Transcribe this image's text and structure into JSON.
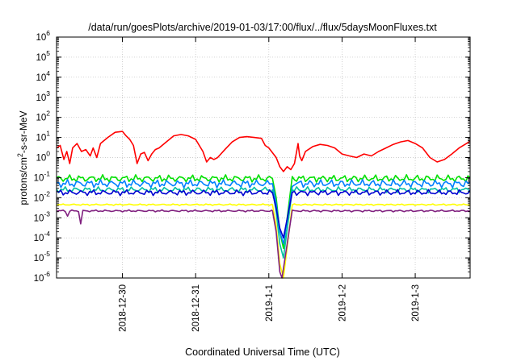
{
  "chart_data": {
    "type": "line",
    "title": "/data/run/goesPlots/archive/2019-01-03/17:00/flux/../flux/5daysMoonFluxes.txt",
    "xlabel": "Coordinated Universal Time (UTC)",
    "ylabel": "protons/cm²-s-sr-MeV",
    "ylabel_parts": {
      "main": "protons/cm",
      "sup": "2",
      "rest": "-s-sr-MeV"
    },
    "yscale": "log",
    "ylim_exp": [
      -6,
      6
    ],
    "ytick_labels": [
      {
        "base": "10",
        "exp": "-6"
      },
      {
        "base": "10",
        "exp": "-5"
      },
      {
        "base": "10",
        "exp": "-4"
      },
      {
        "base": "10",
        "exp": "-3"
      },
      {
        "base": "10",
        "exp": "-2"
      },
      {
        "base": "10",
        "exp": "-1"
      },
      {
        "base": "10",
        "exp": "0"
      },
      {
        "base": "10",
        "exp": "1"
      },
      {
        "base": "10",
        "exp": "2"
      },
      {
        "base": "10",
        "exp": "3"
      },
      {
        "base": "10",
        "exp": "4"
      },
      {
        "base": "10",
        "exp": "5"
      },
      {
        "base": "10",
        "exp": "6"
      }
    ],
    "xlim_days": [
      -2.9,
      2.75
    ],
    "x_ticks": [
      {
        "label": "2018-12-30",
        "day": -2
      },
      {
        "label": "2018-12-31",
        "day": -1
      },
      {
        "label": "2019-1-1",
        "day": 0
      },
      {
        "label": "2019-1-2",
        "day": 1
      },
      {
        "label": "2019-1-3",
        "day": 2
      }
    ],
    "grid": true,
    "series": [
      {
        "color": "#ff0000",
        "points": [
          [
            -2.9,
            3.0
          ],
          [
            -2.85,
            4.0
          ],
          [
            -2.8,
            0.8
          ],
          [
            -2.76,
            2.0
          ],
          [
            -2.72,
            0.5
          ],
          [
            -2.68,
            3.0
          ],
          [
            -2.62,
            5.0
          ],
          [
            -2.56,
            2.0
          ],
          [
            -2.5,
            2.5
          ],
          [
            -2.44,
            1.2
          ],
          [
            -2.4,
            3.0
          ],
          [
            -2.35,
            1.0
          ],
          [
            -2.3,
            5.0
          ],
          [
            -2.2,
            10
          ],
          [
            -2.1,
            18
          ],
          [
            -2.0,
            20
          ],
          [
            -1.95,
            12
          ],
          [
            -1.9,
            8.0
          ],
          [
            -1.85,
            4.0
          ],
          [
            -1.8,
            0.5
          ],
          [
            -1.75,
            1.5
          ],
          [
            -1.7,
            1.8
          ],
          [
            -1.65,
            0.7
          ],
          [
            -1.6,
            1.5
          ],
          [
            -1.55,
            2.5
          ],
          [
            -1.5,
            3.0
          ],
          [
            -1.4,
            6.0
          ],
          [
            -1.3,
            12
          ],
          [
            -1.2,
            14
          ],
          [
            -1.1,
            12
          ],
          [
            -1.0,
            8.0
          ],
          [
            -0.95,
            4.0
          ],
          [
            -0.9,
            2.0
          ],
          [
            -0.85,
            0.6
          ],
          [
            -0.8,
            1.0
          ],
          [
            -0.75,
            0.8
          ],
          [
            -0.7,
            1.0
          ],
          [
            -0.6,
            2.5
          ],
          [
            -0.5,
            6.0
          ],
          [
            -0.4,
            10
          ],
          [
            -0.3,
            11
          ],
          [
            -0.2,
            10
          ],
          [
            -0.1,
            9.0
          ],
          [
            -0.05,
            4.0
          ],
          [
            0.0,
            3.0
          ],
          [
            0.1,
            1.0
          ],
          [
            0.15,
            0.35
          ],
          [
            0.2,
            0.2
          ],
          [
            0.25,
            0.35
          ],
          [
            0.3,
            0.25
          ],
          [
            0.35,
            0.5
          ],
          [
            0.4,
            5.0
          ],
          [
            0.42,
            1.2
          ],
          [
            0.45,
            0.7
          ],
          [
            0.5,
            2.0
          ],
          [
            0.6,
            3.5
          ],
          [
            0.7,
            4.5
          ],
          [
            0.8,
            4.0
          ],
          [
            0.9,
            3.0
          ],
          [
            1.0,
            1.5
          ],
          [
            1.1,
            1.2
          ],
          [
            1.2,
            1.0
          ],
          [
            1.3,
            1.5
          ],
          [
            1.4,
            1.2
          ],
          [
            1.5,
            2.0
          ],
          [
            1.6,
            3.0
          ],
          [
            1.7,
            4.5
          ],
          [
            1.8,
            6.0
          ],
          [
            1.9,
            7.0
          ],
          [
            2.0,
            5.0
          ],
          [
            2.1,
            3.0
          ],
          [
            2.2,
            1.0
          ],
          [
            2.3,
            0.6
          ],
          [
            2.4,
            0.8
          ],
          [
            2.5,
            1.5
          ],
          [
            2.6,
            3.0
          ],
          [
            2.7,
            5.0
          ],
          [
            2.75,
            6.5
          ]
        ]
      },
      {
        "color": "#00e000",
        "base": 0.09,
        "spread": 0.38,
        "phase": 1.1,
        "drop": [
          [
            0.05,
            0.09
          ],
          [
            0.1,
            0.01
          ],
          [
            0.15,
            0.0002
          ],
          [
            0.2,
            3e-05
          ]
        ]
      },
      {
        "color": "#0080ff",
        "base": 0.05,
        "spread": 0.42,
        "phase": 2.3,
        "drop": [
          [
            0.05,
            0.05
          ],
          [
            0.1,
            0.005
          ],
          [
            0.15,
            0.0002
          ],
          [
            0.2,
            5e-05
          ]
        ]
      },
      {
        "color": "#00c0a0",
        "base": 0.025,
        "spread": 0.3,
        "phase": 3.7,
        "drop": [
          [
            0.05,
            0.025
          ],
          [
            0.1,
            0.002
          ],
          [
            0.15,
            5e-05
          ],
          [
            0.2,
            1e-05
          ]
        ]
      },
      {
        "color": "#0000d0",
        "base": 0.018,
        "spread": 0.3,
        "phase": 0.5,
        "drop": [
          [
            0.05,
            0.018
          ],
          [
            0.1,
            0.003
          ],
          [
            0.15,
            0.0003
          ],
          [
            0.2,
            0.0001
          ]
        ]
      },
      {
        "color": "#ffff00",
        "base": 0.0045,
        "spread": 0.08,
        "phase": 4.9,
        "drop": [
          [
            0.05,
            0.0045
          ],
          [
            0.1,
            0.0004
          ],
          [
            0.15,
            5e-06
          ],
          [
            0.2,
            1e-06
          ]
        ]
      },
      {
        "color": "#80207f",
        "base": 0.0022,
        "spread": 0.1,
        "phase": 5.5,
        "spikes": [
          [
            -2.75,
            0.0012
          ],
          [
            -2.57,
            0.0005
          ]
        ],
        "drop": [
          [
            0.05,
            0.0022
          ],
          [
            0.1,
            0.0002
          ],
          [
            0.15,
            2e-06
          ],
          [
            0.18,
            1e-06
          ]
        ]
      }
    ]
  }
}
